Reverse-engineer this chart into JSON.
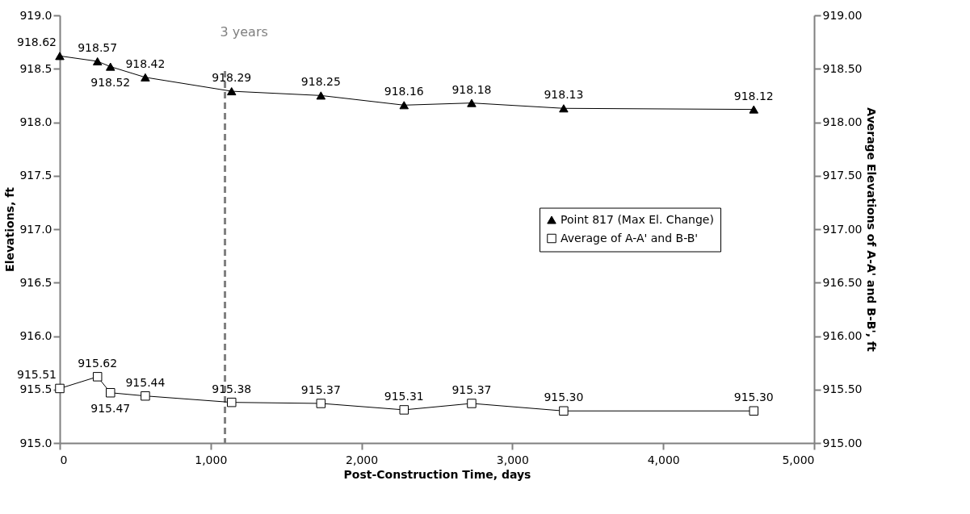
{
  "chart_data": {
    "type": "line",
    "xlabel": "Post-Construction Time, days",
    "ylabel": "Elevations, ft",
    "y2label": "Average Elevations of A-A' and B-B', ft",
    "x": [
      0,
      250,
      336,
      567,
      1139,
      1731,
      2282,
      2730,
      3340,
      4600
    ],
    "xlim": [
      0,
      5000
    ],
    "xticks": [
      0,
      {
        "value": 1000,
        "label": "1,000"
      },
      {
        "value": 2000,
        "label": "2,000"
      },
      {
        "value": 3000,
        "label": "3,000"
      },
      {
        "value": 4000,
        "label": "4,000"
      },
      {
        "value": 5000,
        "label": "5,000"
      }
    ],
    "ylim": [
      915,
      919
    ],
    "yticks": [
      {
        "value": 915,
        "label": "915.0"
      },
      915.5,
      {
        "value": 916,
        "label": "916.0"
      },
      916.5,
      {
        "value": 917,
        "label": "917.0"
      },
      917.5,
      {
        "value": 918,
        "label": "918.0"
      },
      918.5,
      {
        "value": 919,
        "label": "919.0"
      }
    ],
    "y2lim": [
      915,
      919
    ],
    "y2ticks": [
      {
        "value": 915,
        "label": "915.00"
      },
      {
        "value": 915.5,
        "label": "915.50"
      },
      {
        "value": 916,
        "label": "916.00"
      },
      {
        "value": 916.5,
        "label": "916.50"
      },
      {
        "value": 917,
        "label": "917.00"
      },
      {
        "value": 917.5,
        "label": "917.50"
      },
      {
        "value": 918,
        "label": "918.00"
      },
      {
        "value": 918.5,
        "label": "918.50"
      },
      {
        "value": 919,
        "label": "919.00"
      }
    ],
    "series": [
      {
        "name": "Point 817 (Max El. Change)",
        "color": "#000000",
        "marker": "triangle",
        "values": [
          918.62,
          918.57,
          918.52,
          918.42,
          918.29,
          918.25,
          918.16,
          918.18,
          918.13,
          918.12
        ],
        "value_labels": [
          "918.62",
          "918.57",
          "918.52",
          "918.42",
          "918.29",
          "918.25",
          "918.16",
          "918.18",
          "918.13",
          "918.12"
        ]
      },
      {
        "name": "Average of A-A' and B-B'",
        "color": "#000000",
        "marker": "square",
        "axis": "y2",
        "values": [
          915.51,
          915.62,
          915.47,
          915.44,
          915.38,
          915.37,
          915.31,
          915.37,
          915.3,
          915.3
        ],
        "value_labels": [
          "915.51",
          "915.62",
          "915.47",
          "915.44",
          "915.38",
          "915.37",
          "915.31",
          "915.37",
          "915.30",
          "915.30"
        ]
      }
    ],
    "ref_lines": [
      {
        "axis": "x",
        "value": 1095,
        "label": "3 years",
        "color": "#808080",
        "line_style": "dashed"
      }
    ],
    "legend": "right",
    "grid": false
  }
}
